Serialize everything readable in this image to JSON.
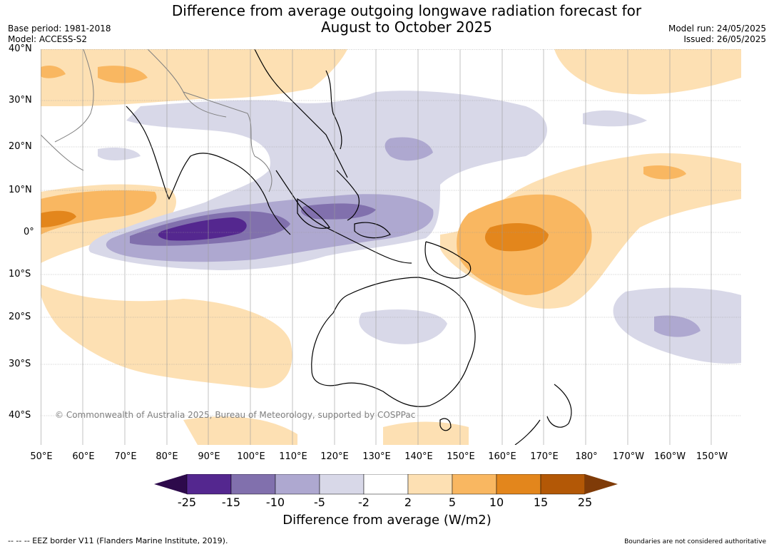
{
  "header": {
    "title_line1": "Difference from average outgoing longwave radiation forecast for",
    "title_line2": "August to October 2025",
    "base_period": "Base period: 1981-2018",
    "model": "Model: ACCESS-S2",
    "model_run": "Model run: 24/05/2025",
    "issued": "Issued: 26/05/2025"
  },
  "axes": {
    "lat_labels": [
      "40°N",
      "30°N",
      "20°N",
      "10°N",
      "0°",
      "10°S",
      "20°S",
      "30°S",
      "40°S"
    ],
    "lon_labels": [
      "50°E",
      "60°E",
      "70°E",
      "80°E",
      "90°E",
      "100°E",
      "110°E",
      "120°E",
      "130°E",
      "140°E",
      "150°E",
      "160°E",
      "170°E",
      "180°",
      "170°W",
      "160°W",
      "150°W"
    ]
  },
  "colorbar": {
    "ticks": [
      "-25",
      "-15",
      "-10",
      "-5",
      "-2",
      "2",
      "5",
      "10",
      "15",
      "25"
    ],
    "colors": [
      "#2d0a4b",
      "#54278f",
      "#8170ad",
      "#aea8d0",
      "#d8d8e8",
      "#ffffff",
      "#fde0b3",
      "#f9b761",
      "#e3861c",
      "#b35806",
      "#7f3b08"
    ],
    "title": "Difference from average (W/m2)"
  },
  "copyright": "© Commonwealth of Australia 2025, Bureau of Meteorology, supported by COSPPac",
  "footer": {
    "eez": "--  --  -- EEZ border V11 (Flanders Marine Institute, 2019).",
    "boundaries": "Boundaries are not considered authoritative"
  }
}
